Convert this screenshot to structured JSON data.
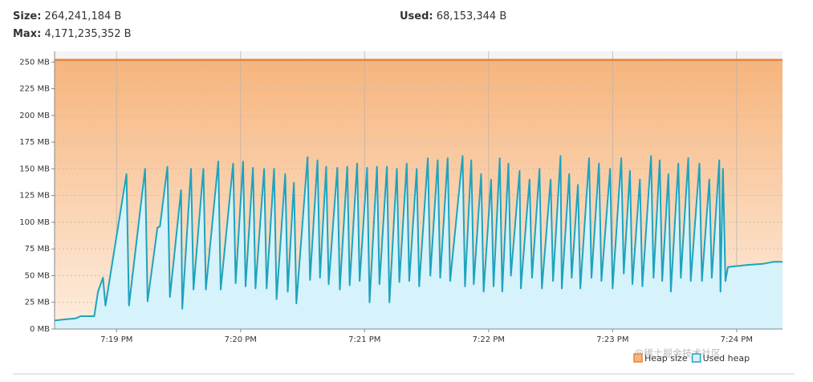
{
  "header": {
    "size_label": "Size:",
    "size_value": "264,241,184 B",
    "max_label": "Max:",
    "max_value": "4,171,235,352 B",
    "used_label": "Used:",
    "used_value": "68,153,344 B"
  },
  "watermark": "@稀土掘金技术社区",
  "chart_data": {
    "type": "line",
    "xlim": [
      18.5,
      24.37
    ],
    "xticks": [
      {
        "value": 19,
        "label": "7:19 PM"
      },
      {
        "value": 20,
        "label": "7:20 PM"
      },
      {
        "value": 21,
        "label": "7:21 PM"
      },
      {
        "value": 22,
        "label": "7:22 PM"
      },
      {
        "value": 23,
        "label": "7:23 PM"
      },
      {
        "value": 24,
        "label": "7:24 PM"
      }
    ],
    "ylim": [
      0,
      260
    ],
    "yticks": [
      {
        "value": 0,
        "label": "0 MB"
      },
      {
        "value": 25,
        "label": "25 MB"
      },
      {
        "value": 50,
        "label": "50 MB"
      },
      {
        "value": 75,
        "label": "75 MB"
      },
      {
        "value": 100,
        "label": "100 MB"
      },
      {
        "value": 125,
        "label": "125 MB"
      },
      {
        "value": 150,
        "label": "150 MB"
      },
      {
        "value": 175,
        "label": "175 MB"
      },
      {
        "value": 200,
        "label": "200 MB"
      },
      {
        "value": 225,
        "label": "225 MB"
      },
      {
        "value": 250,
        "label": "250 MB"
      }
    ],
    "grid": true,
    "legend": "bottom-right",
    "series": [
      {
        "name": "Heap size",
        "color": "#e8843a",
        "fill": "#f6b47c",
        "x": [
          18.5,
          24.37
        ],
        "values": [
          252,
          252
        ]
      },
      {
        "name": "Used heap",
        "color": "#1ea3be",
        "fill": "#d6f2fb",
        "x": [
          18.5,
          18.58,
          18.67,
          18.71,
          18.82,
          18.85,
          18.89,
          18.91,
          19.08,
          19.1,
          19.23,
          19.25,
          19.33,
          19.35,
          19.41,
          19.43,
          19.52,
          19.53,
          19.6,
          19.62,
          19.7,
          19.72,
          19.82,
          19.84,
          19.94,
          19.96,
          20.02,
          20.04,
          20.1,
          20.12,
          20.19,
          20.21,
          20.27,
          20.29,
          20.36,
          20.38,
          20.43,
          20.45,
          20.54,
          20.56,
          20.62,
          20.64,
          20.69,
          20.71,
          20.78,
          20.8,
          20.86,
          20.88,
          20.94,
          20.96,
          21.02,
          21.04,
          21.1,
          21.12,
          21.18,
          21.2,
          21.26,
          21.28,
          21.34,
          21.36,
          21.42,
          21.44,
          21.51,
          21.53,
          21.59,
          21.61,
          21.67,
          21.69,
          21.79,
          21.81,
          21.86,
          21.88,
          21.94,
          21.96,
          22.02,
          22.04,
          22.09,
          22.11,
          22.16,
          22.18,
          22.25,
          22.26,
          22.33,
          22.35,
          22.41,
          22.43,
          22.5,
          22.52,
          22.58,
          22.59,
          22.65,
          22.67,
          22.72,
          22.74,
          22.81,
          22.83,
          22.89,
          22.91,
          22.98,
          23.0,
          23.07,
          23.09,
          23.14,
          23.16,
          23.22,
          23.24,
          23.31,
          23.33,
          23.38,
          23.4,
          23.45,
          23.47,
          23.53,
          23.55,
          23.61,
          23.63,
          23.7,
          23.72,
          23.78,
          23.8,
          23.86,
          23.87,
          23.89,
          23.91,
          23.93,
          24.08,
          24.21,
          24.3,
          24.37
        ],
        "values": [
          8,
          9,
          10,
          12,
          12,
          35,
          48,
          22,
          145,
          22,
          150,
          26,
          95,
          96,
          152,
          30,
          130,
          19,
          150,
          37,
          150,
          37,
          157,
          37,
          155,
          43,
          157,
          40,
          151,
          38,
          150,
          38,
          150,
          28,
          145,
          35,
          137,
          24,
          161,
          46,
          158,
          48,
          152,
          42,
          151,
          37,
          152,
          41,
          155,
          45,
          151,
          25,
          152,
          42,
          152,
          25,
          150,
          44,
          155,
          45,
          150,
          40,
          160,
          50,
          158,
          48,
          160,
          45,
          162,
          40,
          158,
          42,
          145,
          35,
          140,
          40,
          160,
          35,
          155,
          50,
          148,
          38,
          140,
          48,
          150,
          38,
          140,
          45,
          162,
          38,
          145,
          48,
          135,
          38,
          160,
          48,
          155,
          45,
          150,
          38,
          160,
          52,
          148,
          42,
          140,
          40,
          162,
          48,
          158,
          45,
          145,
          35,
          155,
          48,
          160,
          45,
          155,
          45,
          140,
          48,
          158,
          35,
          150,
          45,
          58,
          60,
          61,
          63,
          63
        ]
      }
    ]
  }
}
